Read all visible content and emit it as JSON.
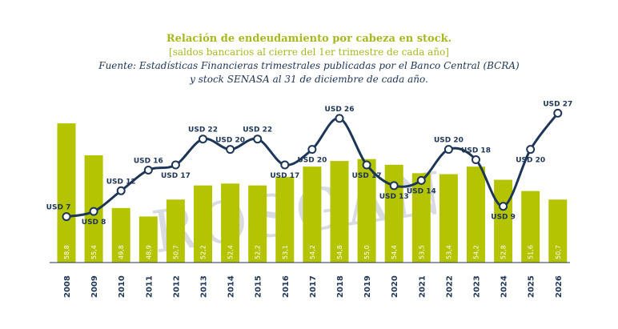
{
  "header": {
    "title": "Relación de endeudamiento por cabeza en stock.",
    "subtitle": "[saldos bancarios al cierre del 1er trimestre de cada año]",
    "source_line1": "Fuente: Estadísticas Financieras trimestrales publicadas por el Banco Central (BCRA)",
    "source_line2": "y stock SENASA al 31 de diciembre de cada año."
  },
  "watermark": "ROSGAN",
  "colors": {
    "bar": "#b5c400",
    "line": "#1d3557",
    "title": "#a6b91e",
    "text": "#1d3557"
  },
  "chart_data": {
    "type": "bar",
    "categories": [
      "2008",
      "2009",
      "2010",
      "2011",
      "2012",
      "2013",
      "2014",
      "2015",
      "2016",
      "2017",
      "2018",
      "2019",
      "2020",
      "2021",
      "2022",
      "2023",
      "2024",
      "2025",
      "2026"
    ],
    "series": [
      {
        "type": "bar",
        "values": [
          58.8,
          55.4,
          49.8,
          48.9,
          50.7,
          52.2,
          52.4,
          52.2,
          53.1,
          54.2,
          54.8,
          55.0,
          54.4,
          53.5,
          53.4,
          54.2,
          52.8,
          51.6,
          50.7
        ],
        "labels": [
          "58,8",
          "55,4",
          "49,8",
          "48,9",
          "50,7",
          "52,2",
          "52,4",
          "52,2",
          "53,1",
          "54,2",
          "54,8",
          "55,0",
          "54,4",
          "53,5",
          "53,4",
          "54,2",
          "52,8",
          "51,6",
          "50,7"
        ]
      },
      {
        "type": "line",
        "values": [
          7,
          8,
          12,
          16,
          17,
          22,
          20,
          22,
          17,
          20,
          26,
          17,
          13,
          14,
          20,
          18,
          9,
          20,
          27
        ],
        "labels": [
          "USD 7",
          "USD 8",
          "USD 12",
          "USD 16",
          "USD 17",
          "USD 22",
          "USD 20",
          "USD 22",
          "USD 17",
          "USD 20",
          "USD 26",
          "USD 17",
          "USD 13",
          "USD 14",
          "USD 20",
          "USD 18",
          "USD 9",
          "USD 20",
          "USD 27"
        ]
      }
    ],
    "bar_ylim": [
      44,
      60
    ],
    "line_ylim": [
      4,
      30
    ],
    "grid": false,
    "legend": "none"
  }
}
